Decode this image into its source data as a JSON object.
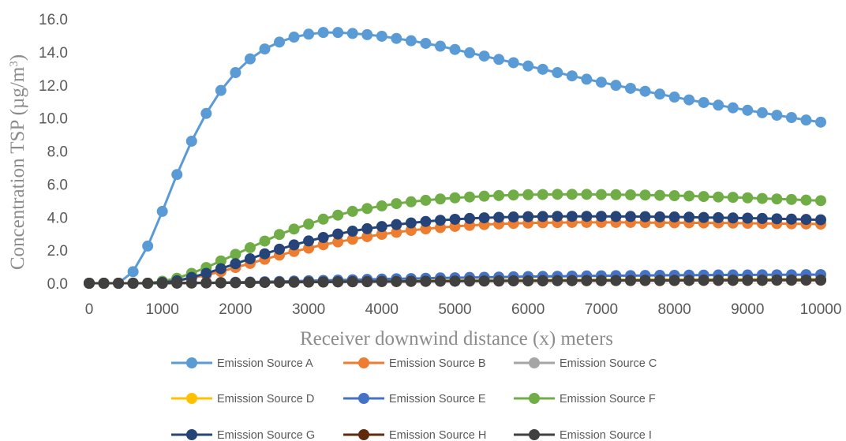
{
  "chart_data": {
    "type": "line",
    "xlabel": "Receiver downwind distance (x) meters",
    "ylabel": "Concentration  TSP (µg/m³)",
    "ylabel_parts": {
      "main": "Concentration  TSP (µg/m",
      "sup": "3",
      "end": ")"
    },
    "xlim": [
      0,
      10000
    ],
    "ylim": [
      0,
      16
    ],
    "x_ticks": [
      "0",
      "1000",
      "2000",
      "3000",
      "4000",
      "5000",
      "6000",
      "7000",
      "8000",
      "9000",
      "10000"
    ],
    "y_ticks": [
      "0.0",
      "2.0",
      "4.0",
      "6.0",
      "8.0",
      "10.0",
      "12.0",
      "14.0",
      "16.0"
    ],
    "grid": "none",
    "legend_position": "bottom",
    "x": [
      0,
      200,
      400,
      600,
      800,
      1000,
      1200,
      1400,
      1600,
      1800,
      2000,
      2200,
      2400,
      2600,
      2800,
      3000,
      3200,
      3400,
      3600,
      3800,
      4000,
      4200,
      4400,
      4600,
      4800,
      5000,
      5200,
      5400,
      5600,
      5800,
      6000,
      6200,
      6400,
      6600,
      6800,
      7000,
      7200,
      7400,
      7600,
      7800,
      8000,
      8200,
      8400,
      8600,
      8800,
      9000,
      9200,
      9400,
      9600,
      9800,
      10000
    ],
    "series": [
      {
        "name": "Emission Source A",
        "color": "#5b9bd5",
        "values": [
          0,
          0,
          0,
          0.7,
          2.25,
          4.35,
          6.58,
          8.6,
          10.28,
          11.67,
          12.75,
          13.58,
          14.18,
          14.6,
          14.9,
          15.08,
          15.18,
          15.18,
          15.12,
          15.05,
          14.95,
          14.82,
          14.68,
          14.52,
          14.35,
          14.15,
          13.95,
          13.75,
          13.55,
          13.35,
          13.15,
          12.95,
          12.75,
          12.55,
          12.35,
          12.17,
          11.98,
          11.8,
          11.62,
          11.45,
          11.27,
          11.1,
          10.94,
          10.78,
          10.62,
          10.47,
          10.32,
          10.17,
          10.03,
          9.88,
          9.75
        ]
      },
      {
        "name": "Emission Source B",
        "color": "#ed7d31",
        "values": [
          0,
          0,
          0,
          0,
          0,
          0.05,
          0.15,
          0.3,
          0.5,
          0.7,
          0.95,
          1.2,
          1.45,
          1.7,
          1.92,
          2.12,
          2.33,
          2.5,
          2.66,
          2.82,
          2.96,
          3.08,
          3.2,
          3.29,
          3.37,
          3.44,
          3.5,
          3.55,
          3.59,
          3.62,
          3.64,
          3.66,
          3.67,
          3.68,
          3.68,
          3.68,
          3.68,
          3.68,
          3.67,
          3.67,
          3.66,
          3.66,
          3.65,
          3.65,
          3.64,
          3.63,
          3.62,
          3.61,
          3.6,
          3.59,
          3.58
        ]
      },
      {
        "name": "Emission Source C",
        "color": "#a5a5a5",
        "values": [
          0,
          0,
          0,
          0,
          0,
          0,
          0.01,
          0.02,
          0.02,
          0.03,
          0.04,
          0.04,
          0.05,
          0.06,
          0.07,
          0.07,
          0.08,
          0.09,
          0.09,
          0.1,
          0.1,
          0.11,
          0.11,
          0.12,
          0.12,
          0.13,
          0.13,
          0.14,
          0.14,
          0.15,
          0.15,
          0.15,
          0.16,
          0.16,
          0.16,
          0.17,
          0.17,
          0.17,
          0.17,
          0.18,
          0.18,
          0.18,
          0.18,
          0.18,
          0.19,
          0.19,
          0.19,
          0.19,
          0.19,
          0.19,
          0.2
        ]
      },
      {
        "name": "Emission Source D",
        "color": "#ffc000",
        "values": [
          0,
          0,
          0,
          0,
          0,
          0,
          0.01,
          0.02,
          0.03,
          0.04,
          0.05,
          0.06,
          0.07,
          0.08,
          0.09,
          0.1,
          0.11,
          0.12,
          0.13,
          0.14,
          0.15,
          0.15,
          0.16,
          0.17,
          0.17,
          0.18,
          0.18,
          0.19,
          0.19,
          0.2,
          0.2,
          0.2,
          0.21,
          0.21,
          0.21,
          0.22,
          0.22,
          0.22,
          0.22,
          0.23,
          0.23,
          0.23,
          0.23,
          0.23,
          0.24,
          0.24,
          0.24,
          0.24,
          0.24,
          0.24,
          0.25
        ]
      },
      {
        "name": "Emission Source E",
        "color": "#4472c4",
        "values": [
          0,
          0,
          0,
          0,
          0,
          0,
          0.01,
          0.02,
          0.03,
          0.04,
          0.06,
          0.07,
          0.09,
          0.11,
          0.13,
          0.15,
          0.17,
          0.19,
          0.21,
          0.23,
          0.25,
          0.27,
          0.28,
          0.3,
          0.32,
          0.33,
          0.35,
          0.36,
          0.37,
          0.39,
          0.4,
          0.41,
          0.42,
          0.43,
          0.44,
          0.45,
          0.46,
          0.46,
          0.47,
          0.48,
          0.48,
          0.49,
          0.49,
          0.5,
          0.5,
          0.5,
          0.51,
          0.51,
          0.51,
          0.52,
          0.52
        ]
      },
      {
        "name": "Emission Source F",
        "color": "#70ad47",
        "values": [
          0,
          0,
          0,
          0,
          0,
          0.12,
          0.3,
          0.6,
          0.95,
          1.35,
          1.75,
          2.15,
          2.55,
          2.95,
          3.28,
          3.58,
          3.88,
          4.12,
          4.35,
          4.52,
          4.68,
          4.82,
          4.93,
          5.02,
          5.1,
          5.17,
          5.22,
          5.27,
          5.31,
          5.34,
          5.36,
          5.37,
          5.38,
          5.38,
          5.38,
          5.37,
          5.36,
          5.35,
          5.34,
          5.32,
          5.3,
          5.28,
          5.25,
          5.22,
          5.2,
          5.17,
          5.13,
          5.1,
          5.07,
          5.03,
          5.0
        ]
      },
      {
        "name": "Emission Source G",
        "color": "#264478",
        "values": [
          0,
          0,
          0,
          0,
          0,
          0.05,
          0.15,
          0.35,
          0.6,
          0.88,
          1.18,
          1.48,
          1.78,
          2.06,
          2.32,
          2.56,
          2.77,
          2.98,
          3.15,
          3.3,
          3.43,
          3.55,
          3.65,
          3.74,
          3.81,
          3.87,
          3.92,
          3.96,
          3.99,
          4.01,
          4.03,
          4.04,
          4.05,
          4.05,
          4.05,
          4.05,
          4.04,
          4.04,
          4.03,
          4.02,
          4.01,
          4.0,
          3.98,
          3.97,
          3.95,
          3.94,
          3.92,
          3.9,
          3.88,
          3.86,
          3.84
        ]
      },
      {
        "name": "Emission Source H",
        "color": "#5e2b0c",
        "values": [
          0,
          0,
          0,
          0,
          0,
          0,
          0.01,
          0.01,
          0.02,
          0.02,
          0.03,
          0.04,
          0.05,
          0.05,
          0.06,
          0.07,
          0.07,
          0.08,
          0.09,
          0.09,
          0.1,
          0.1,
          0.11,
          0.11,
          0.12,
          0.12,
          0.13,
          0.13,
          0.13,
          0.14,
          0.14,
          0.14,
          0.15,
          0.15,
          0.15,
          0.15,
          0.16,
          0.16,
          0.16,
          0.16,
          0.16,
          0.17,
          0.17,
          0.17,
          0.17,
          0.17,
          0.17,
          0.18,
          0.18,
          0.18,
          0.18
        ]
      },
      {
        "name": "Emission Source I",
        "color": "#404040",
        "values": [
          0,
          0,
          0,
          0,
          0,
          0,
          0.01,
          0.02,
          0.02,
          0.03,
          0.04,
          0.04,
          0.05,
          0.06,
          0.07,
          0.07,
          0.08,
          0.09,
          0.1,
          0.1,
          0.11,
          0.11,
          0.12,
          0.12,
          0.13,
          0.13,
          0.14,
          0.14,
          0.15,
          0.15,
          0.15,
          0.16,
          0.16,
          0.16,
          0.17,
          0.17,
          0.17,
          0.17,
          0.18,
          0.18,
          0.18,
          0.18,
          0.19,
          0.19,
          0.19,
          0.19,
          0.19,
          0.2,
          0.2,
          0.2,
          0.2
        ]
      }
    ]
  }
}
